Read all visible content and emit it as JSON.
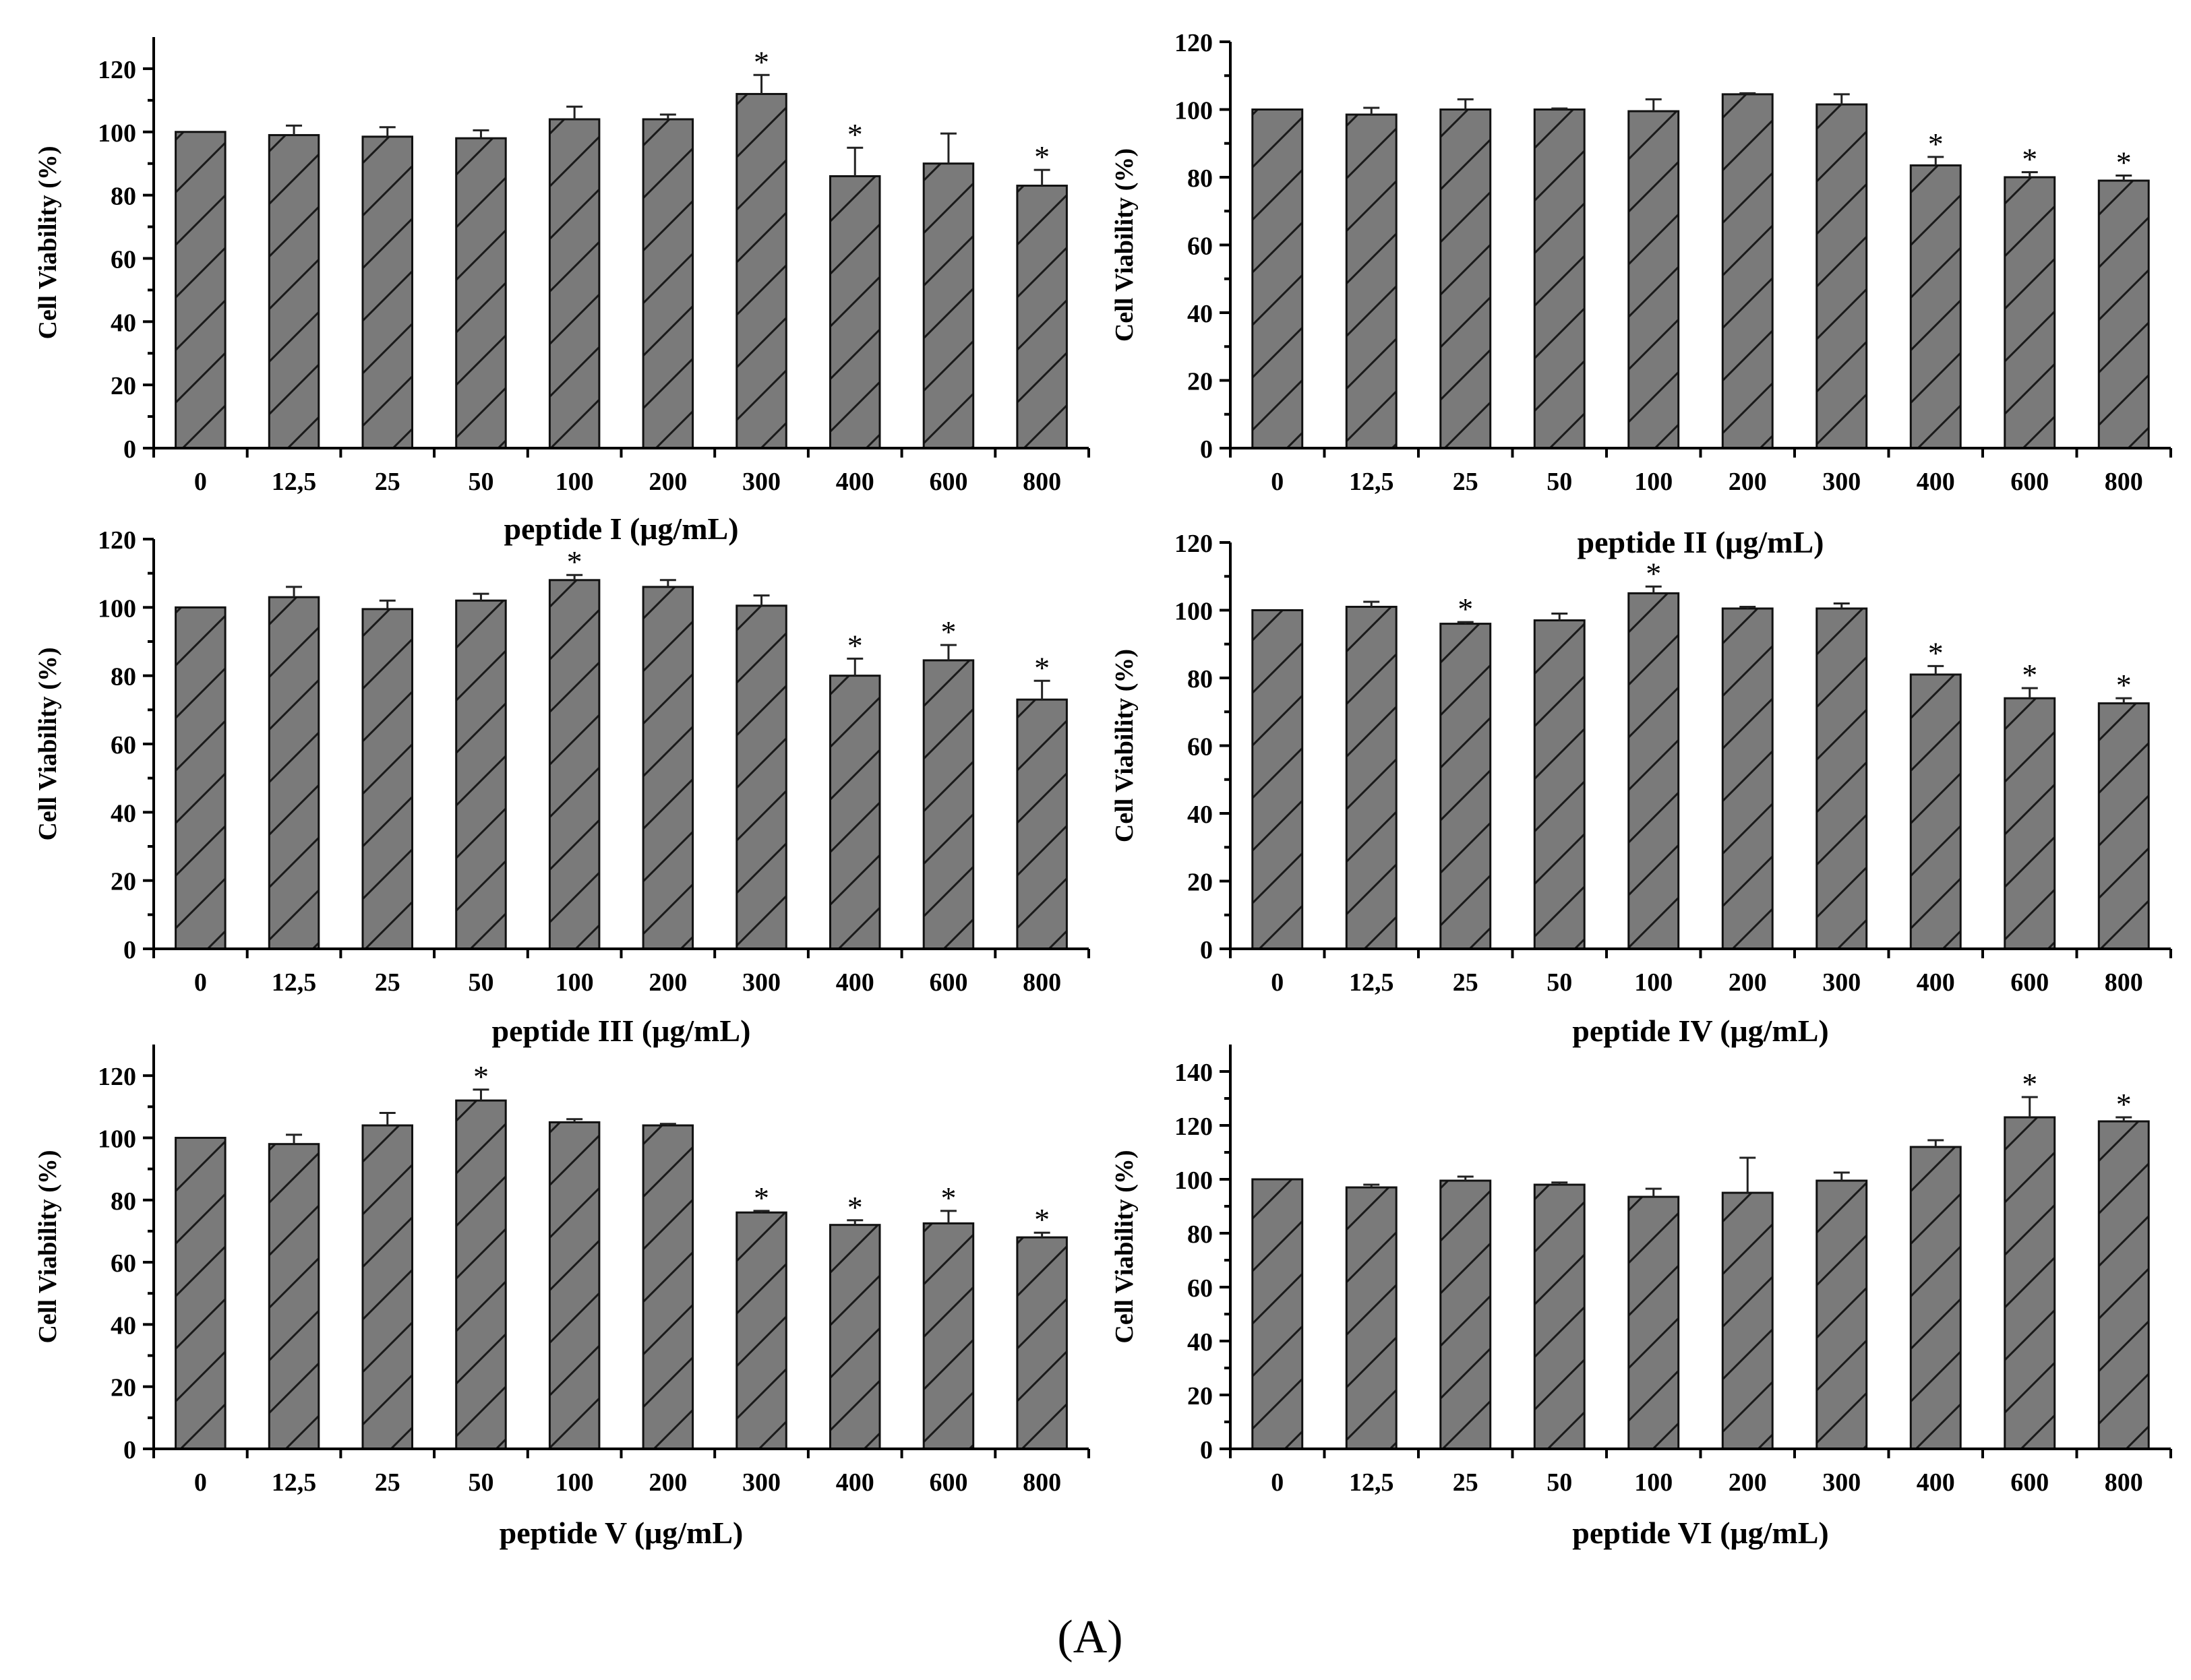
{
  "figure_label": "(A)",
  "colors": {
    "bar_fill": "#7a7a7a",
    "hatch": "#1a1a1a",
    "axis": "#000000"
  },
  "chart_data": [
    {
      "type": "bar",
      "title": "",
      "xlabel": "peptide I (μg/mL)",
      "ylabel": "Cell Viability (%)",
      "categories": [
        "0",
        "12,5",
        "25",
        "50",
        "100",
        "200",
        "300",
        "400",
        "600",
        "800"
      ],
      "values": [
        100,
        99,
        98.5,
        98,
        104,
        104,
        112,
        86,
        90,
        83
      ],
      "errors": [
        0,
        3,
        3,
        2.5,
        4,
        1.5,
        6,
        9,
        9.5,
        5
      ],
      "significant": [
        "",
        "",
        "",
        "",
        "",
        "",
        "*",
        "*",
        "",
        "*"
      ],
      "ylim": [
        0,
        130
      ],
      "yticks": [
        "0",
        "20",
        "40",
        "60",
        "80",
        "100",
        "120"
      ]
    },
    {
      "type": "bar",
      "title": "",
      "xlabel": "peptide II (μg/mL)",
      "ylabel": "Cell Viability (%)",
      "categories": [
        "0",
        "12,5",
        "25",
        "50",
        "100",
        "200",
        "300",
        "400",
        "600",
        "800"
      ],
      "values": [
        100,
        98.5,
        100,
        100,
        99.5,
        104.5,
        101.5,
        83.5,
        80,
        79
      ],
      "errors": [
        0,
        2,
        3,
        0.3,
        3.5,
        0.3,
        3,
        2.5,
        1.5,
        1.5
      ],
      "significant": [
        "",
        "",
        "",
        "",
        "",
        "",
        "",
        "*",
        "*",
        "*"
      ],
      "ylim": [
        0,
        120
      ],
      "yticks": [
        "0",
        "20",
        "40",
        "60",
        "80",
        "100",
        "120"
      ]
    },
    {
      "type": "bar",
      "title": "",
      "xlabel": "peptide III (μg/mL)",
      "ylabel": "Cell Viability (%)",
      "categories": [
        "0",
        "12,5",
        "25",
        "50",
        "100",
        "200",
        "300",
        "400",
        "600",
        "800"
      ],
      "values": [
        100,
        103,
        99.5,
        102,
        108,
        106,
        100.5,
        80,
        84.5,
        73
      ],
      "errors": [
        0,
        3,
        2.5,
        2,
        1.5,
        2,
        3,
        5,
        4.5,
        5.5
      ],
      "significant": [
        "",
        "",
        "",
        "",
        "*",
        "",
        "",
        "*",
        "*",
        "*"
      ],
      "ylim": [
        0,
        120
      ],
      "yticks": [
        "0",
        "20",
        "40",
        "60",
        "80",
        "100",
        "120"
      ]
    },
    {
      "type": "bar",
      "title": "",
      "xlabel": "peptide IV (μg/mL)",
      "ylabel": "Cell Viability (%)",
      "categories": [
        "0",
        "12,5",
        "25",
        "50",
        "100",
        "200",
        "300",
        "400",
        "600",
        "800"
      ],
      "values": [
        100,
        101,
        96,
        97,
        105,
        100.5,
        100.5,
        81,
        74,
        72.5
      ],
      "errors": [
        0,
        1.5,
        0.5,
        2,
        2,
        0.5,
        1.5,
        2.5,
        3,
        1.5
      ],
      "significant": [
        "",
        "",
        "*",
        "",
        "*",
        "",
        "",
        "*",
        "*",
        "*"
      ],
      "ylim": [
        0,
        120
      ],
      "yticks": [
        "0",
        "20",
        "40",
        "60",
        "80",
        "100",
        "120"
      ]
    },
    {
      "type": "bar",
      "title": "",
      "xlabel": "peptide V (μg/mL)",
      "ylabel": "Cell Viability (%)",
      "categories": [
        "0",
        "12,5",
        "25",
        "50",
        "100",
        "200",
        "300",
        "400",
        "600",
        "800"
      ],
      "values": [
        100,
        98,
        104,
        112,
        105,
        104,
        76,
        72,
        72.5,
        68
      ],
      "errors": [
        0,
        3,
        4,
        3.5,
        1,
        0.5,
        0.5,
        1.5,
        4,
        1.5
      ],
      "significant": [
        "",
        "",
        "",
        "*",
        "",
        "",
        "*",
        "*",
        "*",
        "*"
      ],
      "ylim": [
        0,
        130
      ],
      "yticks": [
        "0",
        "20",
        "40",
        "60",
        "80",
        "100",
        "120"
      ]
    },
    {
      "type": "bar",
      "title": "",
      "xlabel": "peptide VI (μg/mL)",
      "ylabel": "Cell Viability (%)",
      "categories": [
        "0",
        "12,5",
        "25",
        "50",
        "100",
        "200",
        "300",
        "400",
        "600",
        "800"
      ],
      "values": [
        100,
        97,
        99.5,
        98,
        93.5,
        95,
        99.5,
        112,
        123,
        121.5
      ],
      "errors": [
        0,
        1,
        1.5,
        0.8,
        3,
        13,
        3,
        2.5,
        7.5,
        1.5
      ],
      "significant": [
        "",
        "",
        "",
        "",
        "",
        "",
        "",
        "",
        "*",
        "*"
      ],
      "ylim": [
        0,
        150
      ],
      "yticks": [
        "0",
        "20",
        "40",
        "60",
        "80",
        "100",
        "120",
        "140"
      ]
    }
  ]
}
